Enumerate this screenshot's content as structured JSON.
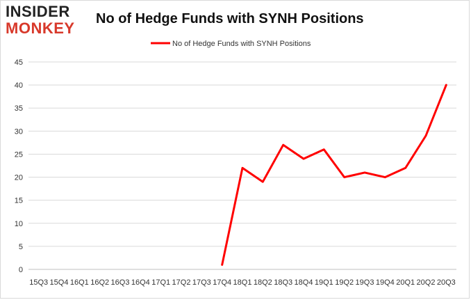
{
  "brand": {
    "line1": "INSIDER",
    "line2": "MONKEY"
  },
  "chart_data": {
    "type": "line",
    "title": "No of Hedge Funds with SYNH Positions",
    "xlabel": "",
    "ylabel": "",
    "ylim": [
      0,
      45
    ],
    "yticks": [
      0,
      5,
      10,
      15,
      20,
      25,
      30,
      35,
      40,
      45
    ],
    "grid": true,
    "legend_position": "top",
    "categories": [
      "15Q3",
      "15Q4",
      "16Q1",
      "16Q2",
      "16Q3",
      "16Q4",
      "17Q1",
      "17Q2",
      "17Q3",
      "17Q4",
      "18Q1",
      "18Q2",
      "18Q3",
      "18Q4",
      "19Q1",
      "19Q2",
      "19Q3",
      "19Q4",
      "20Q1",
      "20Q2",
      "20Q3"
    ],
    "series": [
      {
        "name": "No of Hedge Funds with SYNH Positions",
        "color": "#ff0000",
        "values": [
          null,
          null,
          null,
          null,
          null,
          null,
          null,
          null,
          null,
          1,
          22,
          19,
          27,
          24,
          26,
          20,
          21,
          20,
          22,
          29,
          40
        ]
      }
    ]
  }
}
